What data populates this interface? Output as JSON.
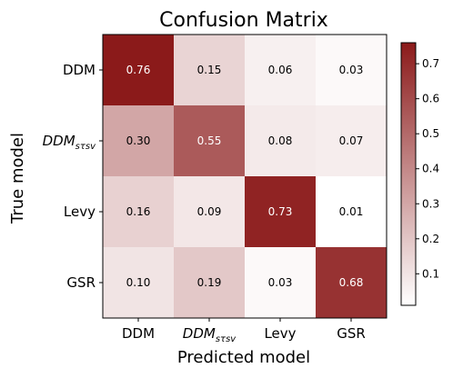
{
  "chart_data": {
    "type": "heatmap",
    "title": "Confusion Matrix",
    "xlabel": "Predicted model",
    "ylabel": "True model",
    "x_categories": [
      {
        "base": "DDM",
        "sub": ""
      },
      {
        "base": "DDM",
        "sub": "sτsv"
      },
      {
        "base": "Levy",
        "sub": ""
      },
      {
        "base": "GSR",
        "sub": ""
      }
    ],
    "y_categories": [
      {
        "base": "DDM",
        "sub": ""
      },
      {
        "base": "DDM",
        "sub": "sτsv"
      },
      {
        "base": "Levy",
        "sub": ""
      },
      {
        "base": "GSR",
        "sub": ""
      }
    ],
    "values": [
      [
        0.76,
        0.15,
        0.06,
        0.03
      ],
      [
        0.3,
        0.55,
        0.08,
        0.07
      ],
      [
        0.16,
        0.09,
        0.73,
        0.01
      ],
      [
        0.1,
        0.19,
        0.03,
        0.68
      ]
    ],
    "labels": [
      [
        "0.76",
        "0.15",
        "0.06",
        "0.03"
      ],
      [
        "0.30",
        "0.55",
        "0.08",
        "0.07"
      ],
      [
        "0.16",
        "0.09",
        "0.73",
        "0.01"
      ],
      [
        "0.10",
        "0.19",
        "0.03",
        "0.68"
      ]
    ],
    "colorbar": {
      "range": [
        0.01,
        0.76
      ],
      "ticks": [
        "0.1",
        "0.2",
        "0.3",
        "0.4",
        "0.5",
        "0.6",
        "0.7"
      ],
      "tick_values": [
        0.1,
        0.2,
        0.3,
        0.4,
        0.5,
        0.6,
        0.7
      ],
      "color_low": "#ffffff",
      "color_high": "#8b1a1a"
    },
    "text_color_light": "#ffffff",
    "text_color_dark": "#000000"
  }
}
